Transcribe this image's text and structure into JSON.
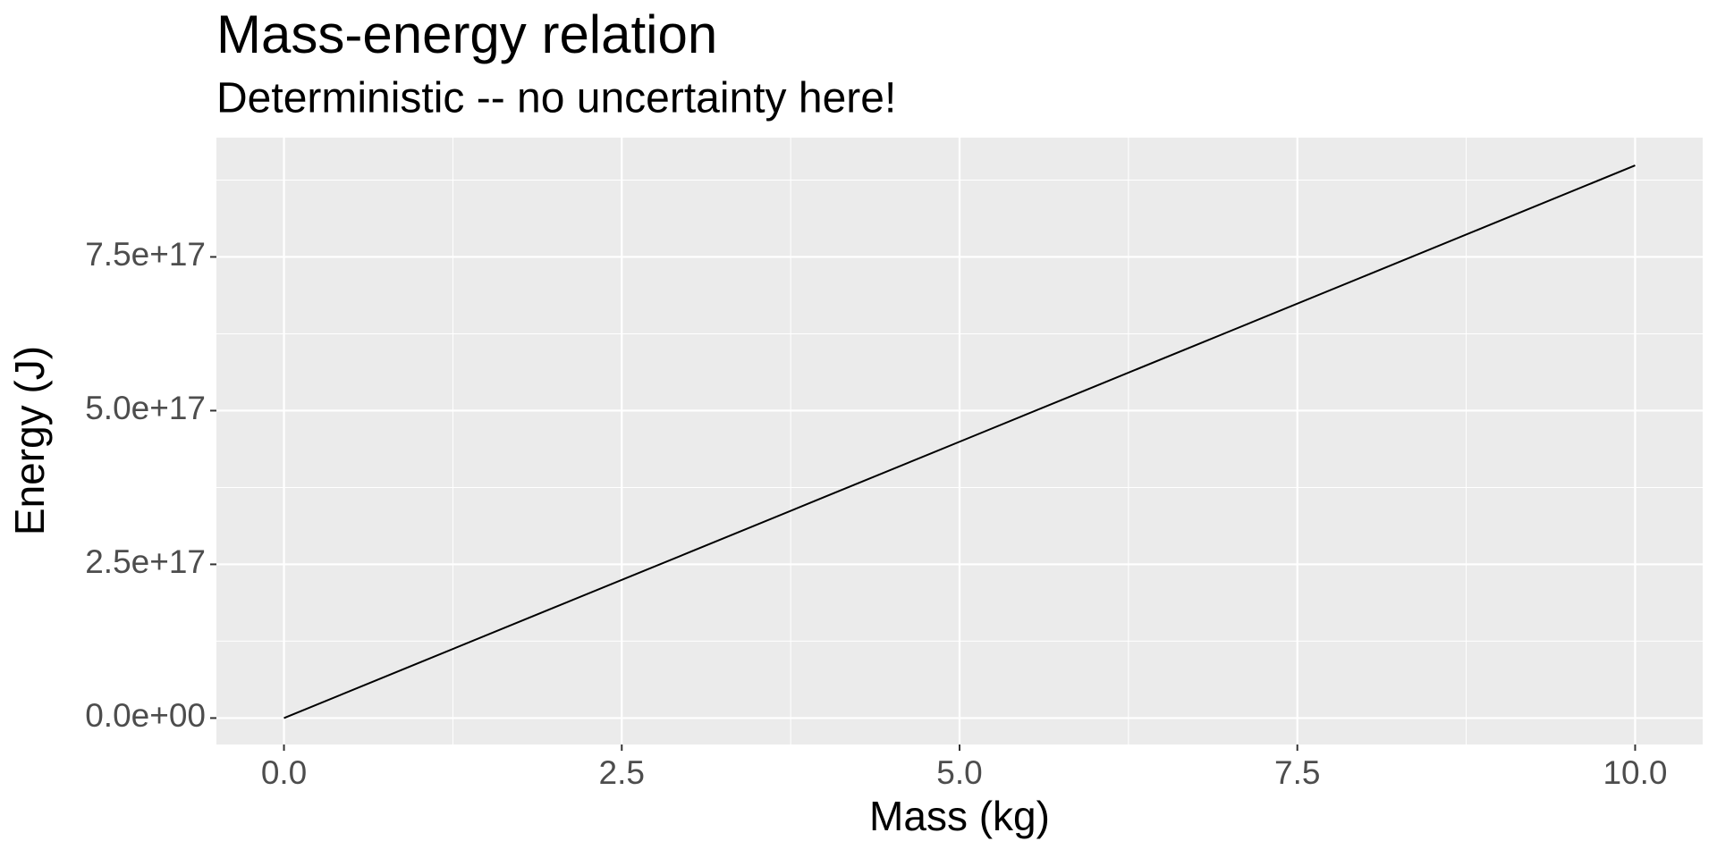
{
  "chart_data": {
    "type": "line",
    "title": "Mass-energy relation",
    "subtitle": "Deterministic -- no uncertainty here!",
    "x_label": "Mass (kg)",
    "y_label": "Energy (J)",
    "x": [
      0,
      1,
      2,
      3,
      4,
      5,
      6,
      7,
      8,
      9,
      10
    ],
    "values": [
      0,
      8.99e+16,
      1.798e+17,
      2.696e+17,
      3.595e+17,
      4.494e+17,
      5.393e+17,
      6.291e+17,
      7.19e+17,
      8.089e+17,
      8.988e+17
    ],
    "color": "#000000",
    "xlim": [
      -0.5,
      10.5
    ],
    "ylim": [
      -4.3e+16,
      9.44e+17
    ],
    "xticks": [
      {
        "value": 0,
        "label": "0.0"
      },
      2.5,
      {
        "value": 5,
        "label": "5.0"
      },
      7.5,
      {
        "value": 10,
        "label": "10.0"
      }
    ],
    "yticks": [
      {
        "value": 0,
        "label": "0.0e+00"
      },
      {
        "value": 2.5e+17,
        "label": "2.5e+17"
      },
      {
        "value": 5e+17,
        "label": "5.0e+17"
      },
      {
        "value": 7.5e+17,
        "label": "7.5e+17"
      }
    ],
    "grid": true,
    "minor_grid": true
  }
}
